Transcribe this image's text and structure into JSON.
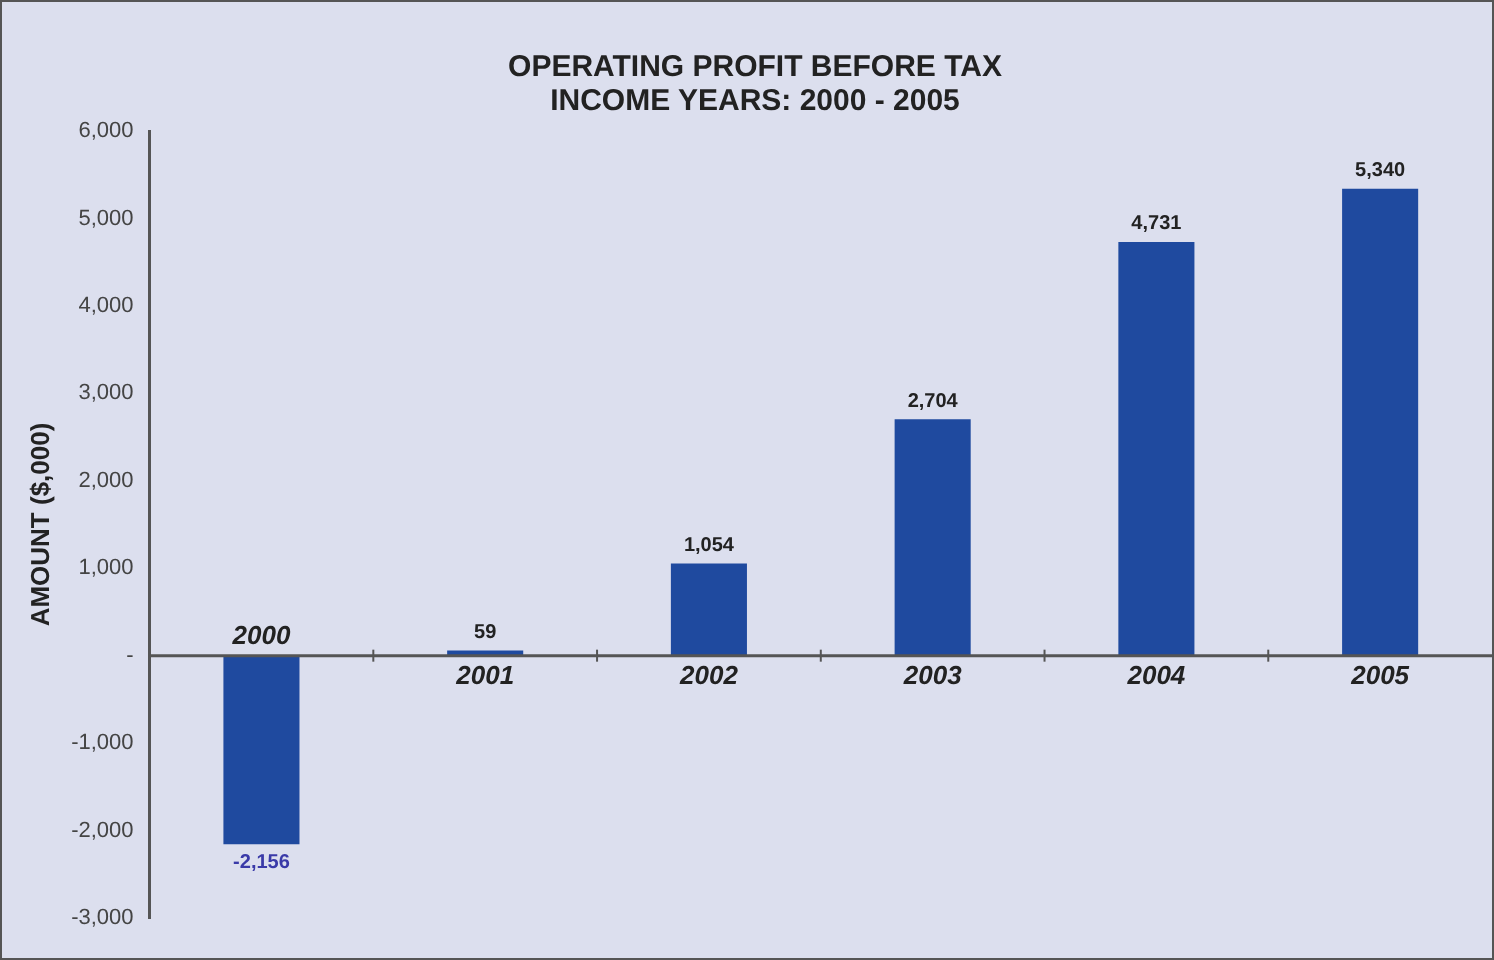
{
  "chart_data": {
    "type": "bar",
    "title": [
      "OPERATING PROFIT BEFORE TAX",
      "INCOME YEARS: 2000 - 2005"
    ],
    "ylabel": "AMOUNT ($,000)",
    "categories": [
      "2000",
      "2001",
      "2002",
      "2003",
      "2004",
      "2005"
    ],
    "values": [
      -2156,
      59,
      1054,
      2704,
      4731,
      5340
    ],
    "color": "#1f4a9f",
    "value_labels": [
      "-2,156",
      "59",
      "1,054",
      "2,704",
      "4,731",
      "5,340"
    ],
    "ylim": [
      -3000,
      6000
    ],
    "yticks": [
      {
        "value": -3000,
        "label": "-3,000"
      },
      {
        "value": -2000,
        "label": "-2,000"
      },
      {
        "value": -1000,
        "label": "-1,000"
      },
      {
        "value": 0,
        "label": "-"
      },
      {
        "value": 1000,
        "label": "1,000"
      },
      {
        "value": 2000,
        "label": "2,000"
      },
      {
        "value": 3000,
        "label": "3,000"
      },
      {
        "value": 4000,
        "label": "4,000"
      },
      {
        "value": 5000,
        "label": "5,000"
      },
      {
        "value": 6000,
        "label": "6,000"
      }
    ],
    "grid": false,
    "legend": false
  }
}
